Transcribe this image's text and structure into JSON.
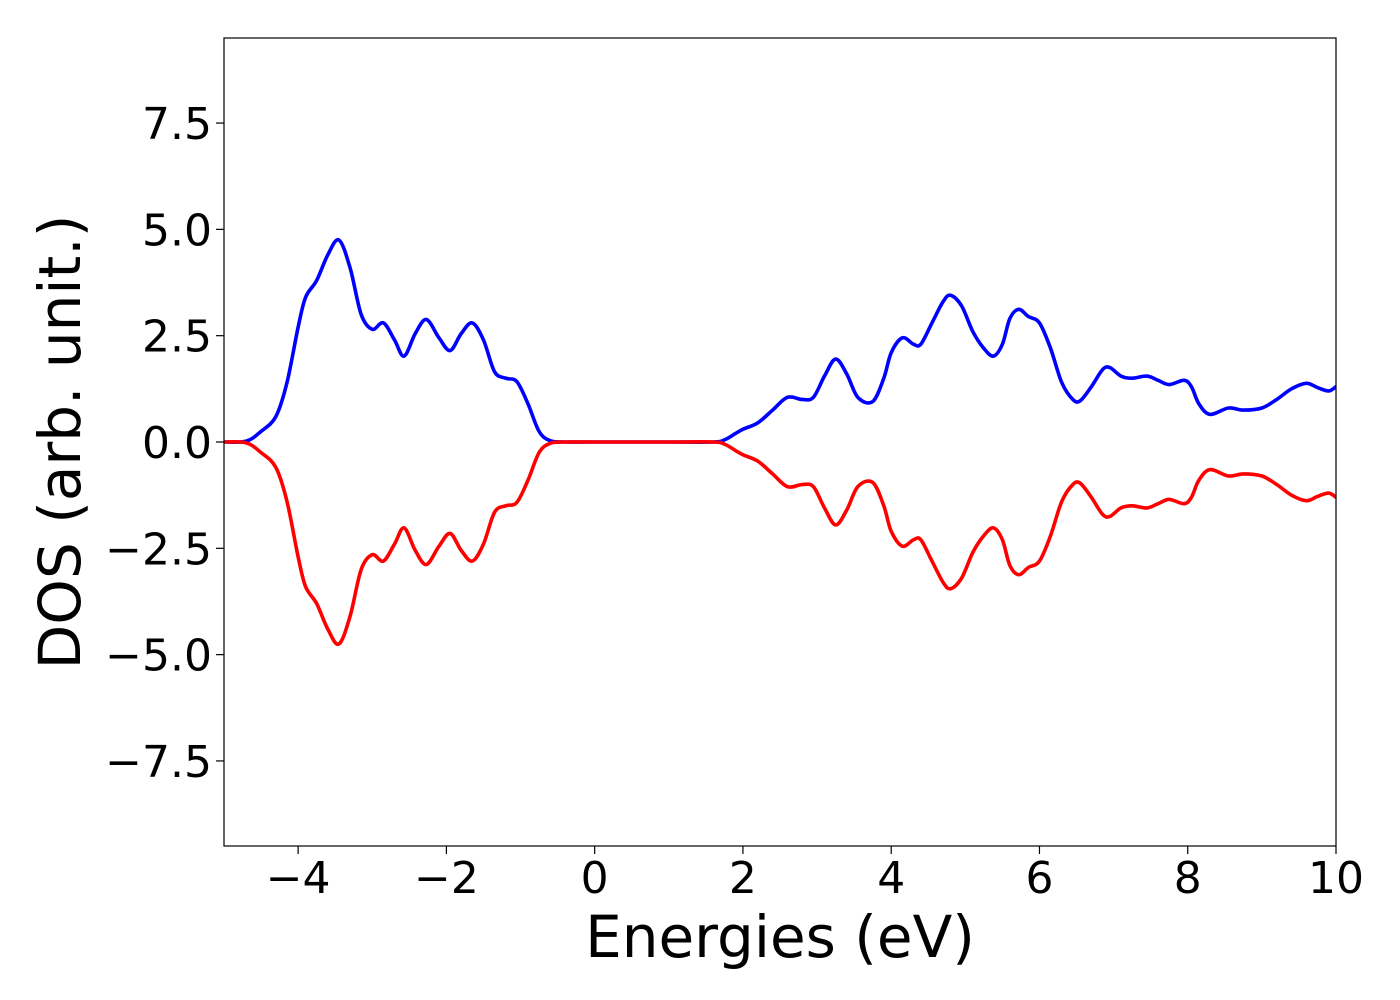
{
  "chart_data": {
    "type": "line",
    "title": "",
    "xlabel": "Energies (eV)",
    "ylabel": "DOS (arb. unit.)",
    "xlim": [
      -5,
      10
    ],
    "ylim": [
      -9.5,
      9.5
    ],
    "xticks": [
      -4,
      -2,
      0,
      2,
      4,
      6,
      8,
      10
    ],
    "yticks": [
      -7.5,
      -5.0,
      -2.5,
      0.0,
      2.5,
      5.0,
      7.5
    ],
    "xtick_labels": [
      "−4",
      "−2",
      "0",
      "2",
      "4",
      "6",
      "8",
      "10"
    ],
    "ytick_labels": [
      "−7.5",
      "−5.0",
      "−2.5",
      "0.0",
      "2.5",
      "5.0",
      "7.5"
    ],
    "grid": false,
    "legend": false,
    "series": [
      {
        "color": "#0000ff",
        "points": [
          [
            -5.0,
            0.0
          ],
          [
            -4.7,
            0.02
          ],
          [
            -4.5,
            0.25
          ],
          [
            -4.3,
            0.6
          ],
          [
            -4.15,
            1.4
          ],
          [
            -4.0,
            2.7
          ],
          [
            -3.9,
            3.4
          ],
          [
            -3.75,
            3.8
          ],
          [
            -3.6,
            4.4
          ],
          [
            -3.45,
            4.75
          ],
          [
            -3.3,
            4.1
          ],
          [
            -3.15,
            3.0
          ],
          [
            -3.0,
            2.65
          ],
          [
            -2.85,
            2.8
          ],
          [
            -2.7,
            2.4
          ],
          [
            -2.57,
            2.02
          ],
          [
            -2.42,
            2.55
          ],
          [
            -2.27,
            2.88
          ],
          [
            -2.1,
            2.45
          ],
          [
            -1.95,
            2.15
          ],
          [
            -1.8,
            2.55
          ],
          [
            -1.65,
            2.8
          ],
          [
            -1.5,
            2.4
          ],
          [
            -1.35,
            1.65
          ],
          [
            -1.2,
            1.5
          ],
          [
            -1.05,
            1.42
          ],
          [
            -0.9,
            0.9
          ],
          [
            -0.75,
            0.25
          ],
          [
            -0.6,
            0.03
          ],
          [
            -0.4,
            0.0
          ],
          [
            0.0,
            0.0
          ],
          [
            1.0,
            0.0
          ],
          [
            1.6,
            0.0
          ],
          [
            1.75,
            0.05
          ],
          [
            1.9,
            0.2
          ],
          [
            2.0,
            0.3
          ],
          [
            2.2,
            0.45
          ],
          [
            2.4,
            0.75
          ],
          [
            2.6,
            1.05
          ],
          [
            2.8,
            1.0
          ],
          [
            2.95,
            1.05
          ],
          [
            3.1,
            1.55
          ],
          [
            3.25,
            1.95
          ],
          [
            3.4,
            1.6
          ],
          [
            3.55,
            1.05
          ],
          [
            3.75,
            0.95
          ],
          [
            3.9,
            1.5
          ],
          [
            4.0,
            2.1
          ],
          [
            4.15,
            2.45
          ],
          [
            4.3,
            2.3
          ],
          [
            4.4,
            2.3
          ],
          [
            4.55,
            2.8
          ],
          [
            4.7,
            3.3
          ],
          [
            4.8,
            3.45
          ],
          [
            4.95,
            3.2
          ],
          [
            5.1,
            2.6
          ],
          [
            5.25,
            2.2
          ],
          [
            5.38,
            2.02
          ],
          [
            5.5,
            2.3
          ],
          [
            5.6,
            2.9
          ],
          [
            5.72,
            3.12
          ],
          [
            5.85,
            2.95
          ],
          [
            6.0,
            2.8
          ],
          [
            6.15,
            2.2
          ],
          [
            6.3,
            1.4
          ],
          [
            6.45,
            1.0
          ],
          [
            6.55,
            0.97
          ],
          [
            6.7,
            1.3
          ],
          [
            6.85,
            1.7
          ],
          [
            6.95,
            1.75
          ],
          [
            7.1,
            1.55
          ],
          [
            7.25,
            1.5
          ],
          [
            7.45,
            1.55
          ],
          [
            7.6,
            1.45
          ],
          [
            7.75,
            1.35
          ],
          [
            7.95,
            1.45
          ],
          [
            8.05,
            1.3
          ],
          [
            8.15,
            0.9
          ],
          [
            8.3,
            0.65
          ],
          [
            8.55,
            0.8
          ],
          [
            8.75,
            0.75
          ],
          [
            9.0,
            0.8
          ],
          [
            9.2,
            1.0
          ],
          [
            9.4,
            1.25
          ],
          [
            9.6,
            1.38
          ],
          [
            9.75,
            1.28
          ],
          [
            9.9,
            1.2
          ],
          [
            10.0,
            1.3
          ]
        ]
      },
      {
        "color": "#ff0000",
        "points": [
          [
            -5.0,
            0.0
          ],
          [
            -4.7,
            -0.02
          ],
          [
            -4.5,
            -0.25
          ],
          [
            -4.3,
            -0.6
          ],
          [
            -4.15,
            -1.4
          ],
          [
            -4.0,
            -2.7
          ],
          [
            -3.9,
            -3.4
          ],
          [
            -3.75,
            -3.8
          ],
          [
            -3.6,
            -4.4
          ],
          [
            -3.45,
            -4.75
          ],
          [
            -3.3,
            -4.1
          ],
          [
            -3.15,
            -3.0
          ],
          [
            -3.0,
            -2.65
          ],
          [
            -2.85,
            -2.8
          ],
          [
            -2.7,
            -2.4
          ],
          [
            -2.57,
            -2.02
          ],
          [
            -2.42,
            -2.55
          ],
          [
            -2.27,
            -2.88
          ],
          [
            -2.1,
            -2.45
          ],
          [
            -1.95,
            -2.15
          ],
          [
            -1.8,
            -2.55
          ],
          [
            -1.65,
            -2.8
          ],
          [
            -1.5,
            -2.4
          ],
          [
            -1.35,
            -1.65
          ],
          [
            -1.2,
            -1.5
          ],
          [
            -1.05,
            -1.42
          ],
          [
            -0.9,
            -0.9
          ],
          [
            -0.75,
            -0.25
          ],
          [
            -0.6,
            -0.03
          ],
          [
            -0.4,
            0.0
          ],
          [
            0.0,
            0.0
          ],
          [
            1.0,
            0.0
          ],
          [
            1.6,
            0.0
          ],
          [
            1.75,
            -0.05
          ],
          [
            1.9,
            -0.2
          ],
          [
            2.0,
            -0.3
          ],
          [
            2.2,
            -0.45
          ],
          [
            2.4,
            -0.75
          ],
          [
            2.6,
            -1.05
          ],
          [
            2.8,
            -1.0
          ],
          [
            2.95,
            -1.05
          ],
          [
            3.1,
            -1.55
          ],
          [
            3.25,
            -1.95
          ],
          [
            3.4,
            -1.6
          ],
          [
            3.55,
            -1.05
          ],
          [
            3.75,
            -0.95
          ],
          [
            3.9,
            -1.5
          ],
          [
            4.0,
            -2.1
          ],
          [
            4.15,
            -2.45
          ],
          [
            4.3,
            -2.3
          ],
          [
            4.4,
            -2.3
          ],
          [
            4.55,
            -2.8
          ],
          [
            4.7,
            -3.3
          ],
          [
            4.8,
            -3.45
          ],
          [
            4.95,
            -3.2
          ],
          [
            5.1,
            -2.6
          ],
          [
            5.25,
            -2.2
          ],
          [
            5.38,
            -2.02
          ],
          [
            5.5,
            -2.3
          ],
          [
            5.6,
            -2.9
          ],
          [
            5.72,
            -3.12
          ],
          [
            5.85,
            -2.95
          ],
          [
            6.0,
            -2.8
          ],
          [
            6.15,
            -2.2
          ],
          [
            6.3,
            -1.4
          ],
          [
            6.45,
            -1.0
          ],
          [
            6.55,
            -0.97
          ],
          [
            6.7,
            -1.3
          ],
          [
            6.85,
            -1.7
          ],
          [
            6.95,
            -1.75
          ],
          [
            7.1,
            -1.55
          ],
          [
            7.25,
            -1.5
          ],
          [
            7.45,
            -1.55
          ],
          [
            7.6,
            -1.45
          ],
          [
            7.75,
            -1.35
          ],
          [
            7.95,
            -1.45
          ],
          [
            8.05,
            -1.3
          ],
          [
            8.15,
            -0.9
          ],
          [
            8.3,
            -0.65
          ],
          [
            8.55,
            -0.8
          ],
          [
            8.75,
            -0.75
          ],
          [
            9.0,
            -0.8
          ],
          [
            9.2,
            -1.0
          ],
          [
            9.4,
            -1.25
          ],
          [
            9.6,
            -1.38
          ],
          [
            9.75,
            -1.28
          ],
          [
            9.9,
            -1.2
          ],
          [
            10.0,
            -1.3
          ]
        ]
      }
    ]
  }
}
